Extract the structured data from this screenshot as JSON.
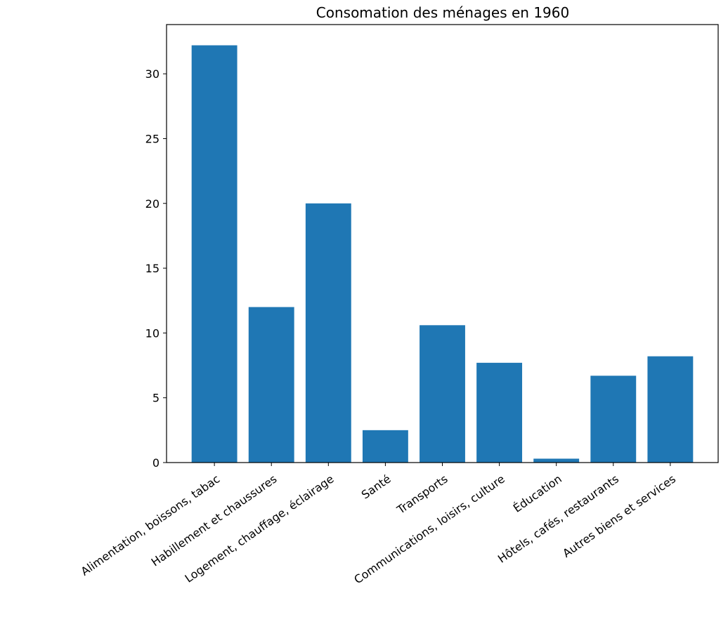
{
  "chart_data": {
    "type": "bar",
    "title": "Consomation des ménages en 1960",
    "xlabel": "",
    "ylabel": "",
    "categories": [
      "Alimentation, boissons, tabac",
      "Habillement et chaussures",
      "Logement, chauffage, éclairage",
      "Santé",
      "Transports",
      "Communications, loisirs, culture",
      "Éducation",
      "Hôtels, cafés, restaurants",
      "Autres biens et services"
    ],
    "values": [
      32.2,
      12.0,
      20.0,
      2.5,
      10.6,
      7.7,
      0.3,
      6.7,
      8.2
    ],
    "ylim": [
      0,
      33.8
    ],
    "yticks": [
      0,
      5,
      10,
      15,
      20,
      25,
      30
    ],
    "ytick_labels": [
      "0",
      "5",
      "10",
      "15",
      "20",
      "25",
      "30"
    ],
    "bar_color": "#1f77b4",
    "grid": false,
    "legend": "none"
  }
}
